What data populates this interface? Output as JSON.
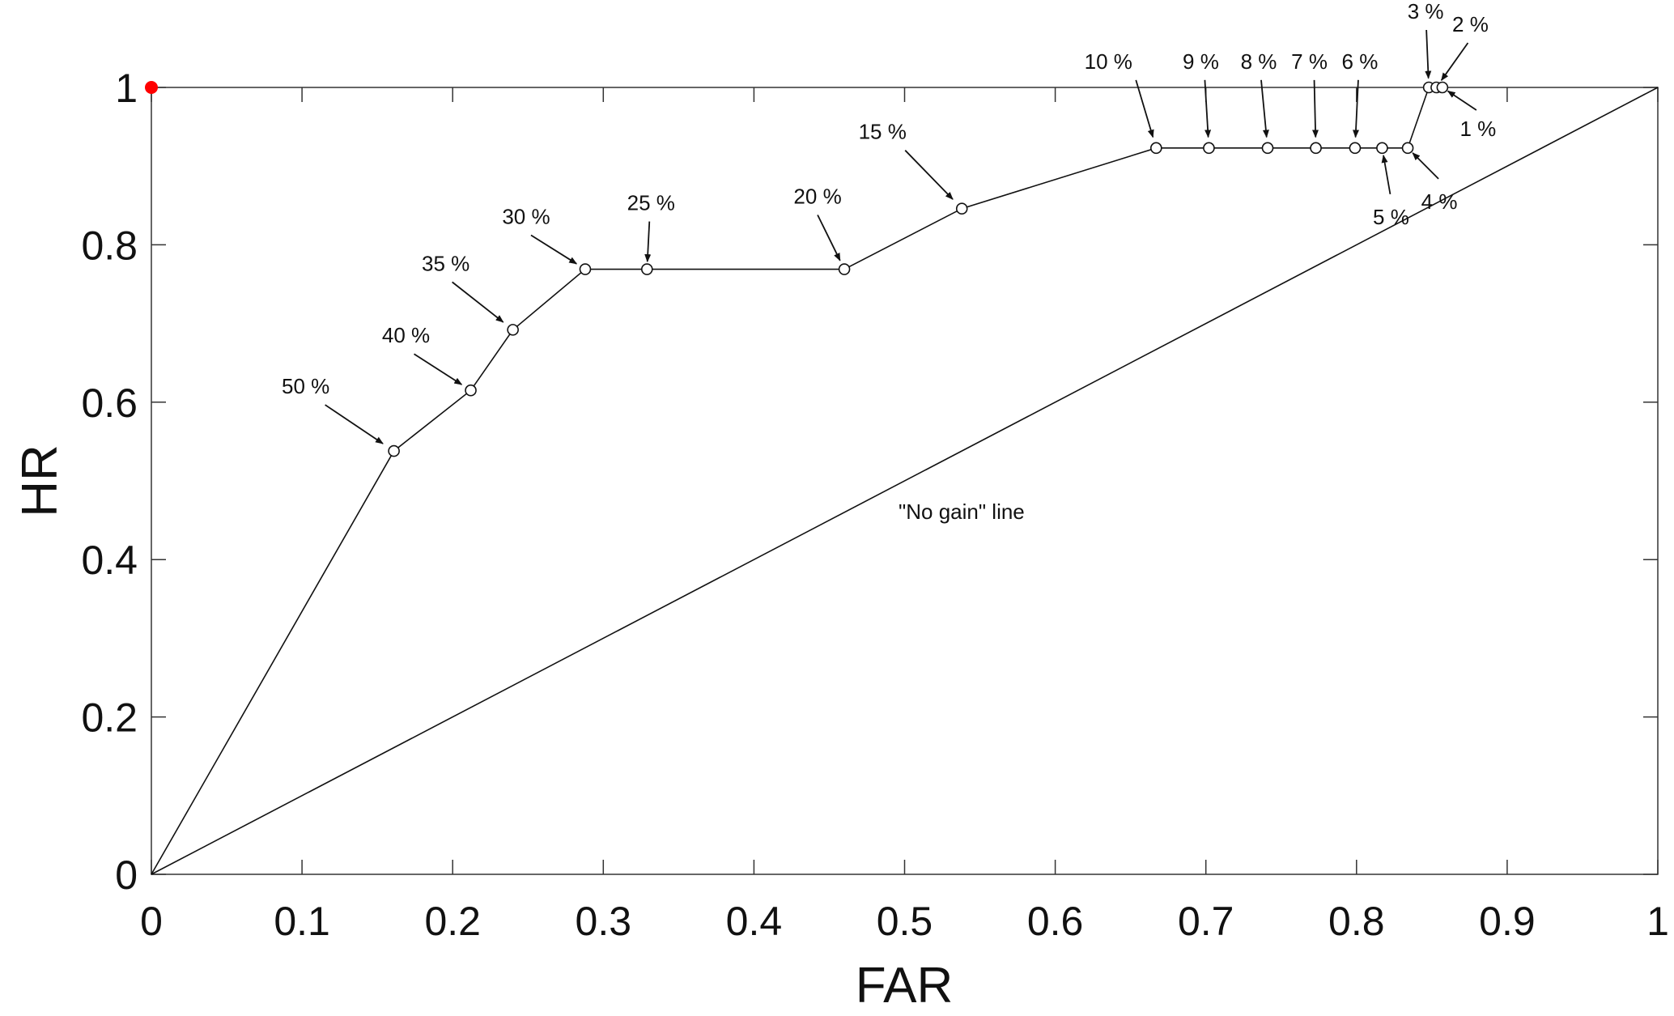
{
  "chart_data": {
    "type": "line",
    "title": "",
    "xlabel": "FAR",
    "ylabel": "HR",
    "xlim": [
      0,
      1
    ],
    "ylim": [
      0,
      1
    ],
    "x_ticks": [
      0,
      0.1,
      0.2,
      0.3,
      0.4,
      0.5,
      0.6,
      0.7,
      0.8,
      0.9,
      1
    ],
    "x_tick_labels": [
      "0",
      "0.1",
      "0.2",
      "0.3",
      "0.4",
      "0.5",
      "0.6",
      "0.7",
      "0.8",
      "0.9",
      "1"
    ],
    "y_ticks": [
      0,
      0.2,
      0.4,
      0.6,
      0.8,
      1
    ],
    "y_tick_labels": [
      "0",
      "0.2",
      "0.4",
      "0.6",
      "0.8",
      "1"
    ],
    "grid": false,
    "series": [
      {
        "points": [
          {
            "x": 0,
            "y": 0,
            "label": ""
          },
          {
            "x": 0.161,
            "y": 0.538,
            "label": "50 %"
          },
          {
            "x": 0.212,
            "y": 0.615,
            "label": "40 %"
          },
          {
            "x": 0.24,
            "y": 0.692,
            "label": "35 %"
          },
          {
            "x": 0.288,
            "y": 0.769,
            "label": "30 %"
          },
          {
            "x": 0.329,
            "y": 0.769,
            "label": "25 %"
          },
          {
            "x": 0.46,
            "y": 0.769,
            "label": "20 %"
          },
          {
            "x": 0.538,
            "y": 0.846,
            "label": "15 %"
          },
          {
            "x": 0.667,
            "y": 0.923,
            "label": "10 %"
          },
          {
            "x": 0.702,
            "y": 0.923,
            "label": "9 %"
          },
          {
            "x": 0.741,
            "y": 0.923,
            "label": "8 %"
          },
          {
            "x": 0.773,
            "y": 0.923,
            "label": "7 %"
          },
          {
            "x": 0.799,
            "y": 0.923,
            "label": "6 %"
          },
          {
            "x": 0.817,
            "y": 0.923,
            "label": "5 %"
          },
          {
            "x": 0.834,
            "y": 0.923,
            "label": "4 %"
          },
          {
            "x": 0.848,
            "y": 1.0,
            "label": "3 %"
          },
          {
            "x": 0.853,
            "y": 1.0,
            "label": "2 %"
          },
          {
            "x": 0.857,
            "y": 1.0,
            "label": "1 %"
          }
        ]
      }
    ],
    "reference_line": {
      "from": [
        0,
        0
      ],
      "to": [
        1,
        1
      ],
      "label": "\"No gain\" line"
    },
    "highlight_point": {
      "x": 0,
      "y": 1,
      "color": "#ff0000"
    },
    "colors": {
      "line": "#111111",
      "highlight": "#ff0000"
    }
  }
}
